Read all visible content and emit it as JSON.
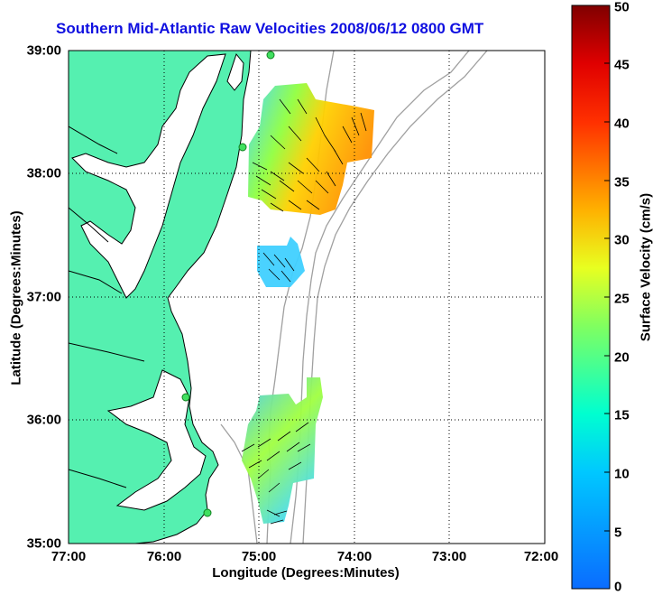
{
  "title": "Southern Mid-Atlantic Raw Velocities 2008/06/12 0800 GMT",
  "xlabel": "Longitude (Degrees:Minutes)",
  "ylabel": "Latitude (Degrees:Minutes)",
  "colorbar_label": "Surface Velocity (cm/s)",
  "x_ticks": [
    "77:00",
    "76:00",
    "75:00",
    "74:00",
    "73:00",
    "72:00"
  ],
  "y_ticks": [
    "39:00",
    "38:00",
    "37:00",
    "36:00",
    "35:00"
  ],
  "colorbar_ticks": [
    "50",
    "45",
    "40",
    "35",
    "30",
    "25",
    "20",
    "15",
    "10",
    "5",
    "0"
  ],
  "colors": {
    "land": "#55f0b0",
    "title": "#1010e0",
    "bathymetry": "#a0a0a0"
  },
  "map": {
    "lon_range": [
      -77,
      -72
    ],
    "lat_range": [
      35,
      39
    ],
    "grid": true,
    "colorbar_range": [
      0,
      50
    ]
  }
}
